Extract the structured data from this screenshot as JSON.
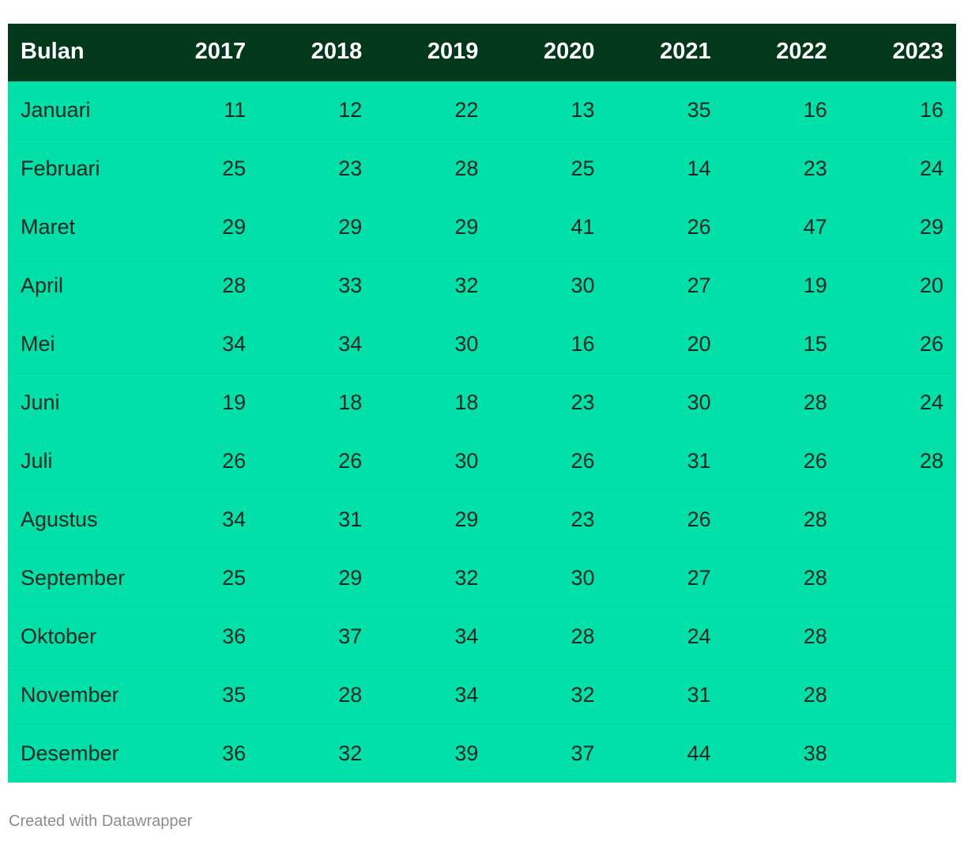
{
  "chart_data": {
    "type": "table",
    "columns": [
      "Bulan",
      "2017",
      "2018",
      "2019",
      "2020",
      "2021",
      "2022",
      "2023"
    ],
    "rows": [
      {
        "month": "Januari",
        "values": [
          "11",
          "12",
          "22",
          "13",
          "35",
          "16",
          "16"
        ]
      },
      {
        "month": "Februari",
        "values": [
          "25",
          "23",
          "28",
          "25",
          "14",
          "23",
          "24"
        ]
      },
      {
        "month": "Maret",
        "values": [
          "29",
          "29",
          "29",
          "41",
          "26",
          "47",
          "29"
        ]
      },
      {
        "month": "April",
        "values": [
          "28",
          "33",
          "32",
          "30",
          "27",
          "19",
          "20"
        ]
      },
      {
        "month": "Mei",
        "values": [
          "34",
          "34",
          "30",
          "16",
          "20",
          "15",
          "26"
        ]
      },
      {
        "month": "Juni",
        "values": [
          "19",
          "18",
          "18",
          "23",
          "30",
          "28",
          "24"
        ]
      },
      {
        "month": "Juli",
        "values": [
          "26",
          "26",
          "30",
          "26",
          "31",
          "26",
          "28"
        ]
      },
      {
        "month": "Agustus",
        "values": [
          "34",
          "31",
          "29",
          "23",
          "26",
          "28",
          ""
        ]
      },
      {
        "month": "September",
        "values": [
          "25",
          "29",
          "32",
          "30",
          "27",
          "28",
          ""
        ]
      },
      {
        "month": "Oktober",
        "values": [
          "36",
          "37",
          "34",
          "28",
          "24",
          "28",
          ""
        ]
      },
      {
        "month": "November",
        "values": [
          "35",
          "28",
          "34",
          "32",
          "31",
          "28",
          ""
        ]
      },
      {
        "month": "Desember",
        "values": [
          "36",
          "32",
          "39",
          "37",
          "44",
          "38",
          ""
        ]
      }
    ]
  },
  "footer": {
    "credit": "Created with Datawrapper"
  },
  "colors": {
    "header_bg": "#02391a",
    "row_bg": "#00e0a8",
    "header_text": "#ffffff",
    "body_text": "#1a2620"
  }
}
